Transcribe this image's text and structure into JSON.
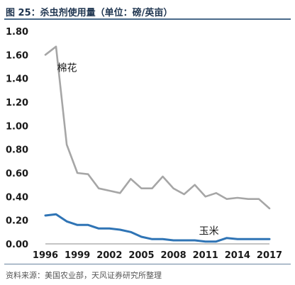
{
  "title": "图 25：杀虫剂使用量（单位：磅/英亩）",
  "source": "资料来源：美国农业部，天风证券研究所整理",
  "chart_data": {
    "type": "line",
    "x": [
      1996,
      1997,
      1998,
      1999,
      2000,
      2001,
      2002,
      2003,
      2004,
      2005,
      2006,
      2007,
      2008,
      2009,
      2010,
      2011,
      2012,
      2013,
      2014,
      2015,
      2016,
      2017
    ],
    "xticks": [
      "1996",
      "1999",
      "2002",
      "2005",
      "2008",
      "2011",
      "2014",
      "2017"
    ],
    "yticks": [
      "0.00",
      "0.20",
      "0.40",
      "0.60",
      "0.80",
      "1.00",
      "1.20",
      "1.40",
      "1.60",
      "1.80"
    ],
    "ylim": [
      0,
      1.8
    ],
    "series": [
      {
        "name": "棉花",
        "color": "#a6a6a6",
        "values": [
          1.6,
          1.67,
          0.84,
          0.6,
          0.59,
          0.47,
          0.45,
          0.43,
          0.55,
          0.47,
          0.47,
          0.57,
          0.47,
          0.42,
          0.5,
          0.4,
          0.43,
          0.38,
          0.39,
          0.38,
          0.38,
          0.3
        ]
      },
      {
        "name": "玉米",
        "color": "#2f74b5",
        "values": [
          0.24,
          0.25,
          0.19,
          0.16,
          0.16,
          0.13,
          0.13,
          0.12,
          0.1,
          0.06,
          0.04,
          0.04,
          0.03,
          0.03,
          0.03,
          0.02,
          0.02,
          0.05,
          0.04,
          0.04,
          0.04,
          0.04
        ]
      }
    ]
  }
}
